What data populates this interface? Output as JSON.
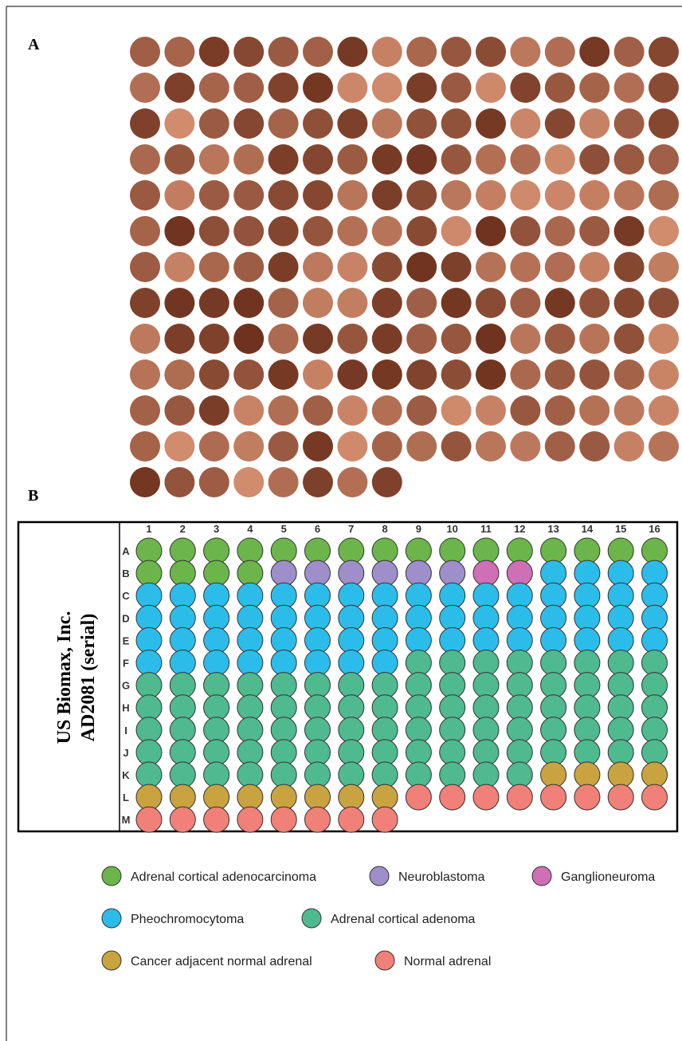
{
  "panel_a": {
    "label": "A"
  },
  "panel_b": {
    "label": "B",
    "title_lines": [
      "US Biomax, Inc.",
      "AD2081 (serial)"
    ],
    "columns": [
      "1",
      "2",
      "3",
      "4",
      "5",
      "6",
      "7",
      "8",
      "9",
      "10",
      "11",
      "12",
      "13",
      "14",
      "15",
      "16"
    ],
    "rows": [
      {
        "label": "A",
        "cells": [
          0,
          0,
          0,
          0,
          0,
          0,
          0,
          0,
          0,
          0,
          0,
          0,
          0,
          0,
          0,
          0
        ]
      },
      {
        "label": "B",
        "cells": [
          0,
          0,
          0,
          0,
          1,
          1,
          1,
          1,
          1,
          1,
          2,
          2,
          3,
          3,
          3,
          3
        ]
      },
      {
        "label": "C",
        "cells": [
          3,
          3,
          3,
          3,
          3,
          3,
          3,
          3,
          3,
          3,
          3,
          3,
          3,
          3,
          3,
          3
        ]
      },
      {
        "label": "D",
        "cells": [
          3,
          3,
          3,
          3,
          3,
          3,
          3,
          3,
          3,
          3,
          3,
          3,
          3,
          3,
          3,
          3
        ]
      },
      {
        "label": "E",
        "cells": [
          3,
          3,
          3,
          3,
          3,
          3,
          3,
          3,
          3,
          3,
          3,
          3,
          3,
          3,
          3,
          3
        ]
      },
      {
        "label": "F",
        "cells": [
          3,
          3,
          3,
          3,
          3,
          3,
          3,
          3,
          4,
          4,
          4,
          4,
          4,
          4,
          4,
          4
        ]
      },
      {
        "label": "G",
        "cells": [
          4,
          4,
          4,
          4,
          4,
          4,
          4,
          4,
          4,
          4,
          4,
          4,
          4,
          4,
          4,
          4
        ]
      },
      {
        "label": "H",
        "cells": [
          4,
          4,
          4,
          4,
          4,
          4,
          4,
          4,
          4,
          4,
          4,
          4,
          4,
          4,
          4,
          4
        ]
      },
      {
        "label": "I",
        "cells": [
          4,
          4,
          4,
          4,
          4,
          4,
          4,
          4,
          4,
          4,
          4,
          4,
          4,
          4,
          4,
          4
        ]
      },
      {
        "label": "J",
        "cells": [
          4,
          4,
          4,
          4,
          4,
          4,
          4,
          4,
          4,
          4,
          4,
          4,
          4,
          4,
          4,
          4
        ]
      },
      {
        "label": "K",
        "cells": [
          4,
          4,
          4,
          4,
          4,
          4,
          4,
          4,
          4,
          4,
          4,
          4,
          5,
          5,
          5,
          5
        ]
      },
      {
        "label": "L",
        "cells": [
          5,
          5,
          5,
          5,
          5,
          5,
          5,
          5,
          6,
          6,
          6,
          6,
          6,
          6,
          6,
          6
        ]
      },
      {
        "label": "M",
        "cells": [
          6,
          6,
          6,
          6,
          6,
          6,
          6,
          6
        ]
      }
    ],
    "legend": [
      {
        "name": "Adrenal cortical adenocarcinoma",
        "color": "#6cb54a"
      },
      {
        "name": "Neuroblastoma",
        "color": "#9e8fca"
      },
      {
        "name": "Ganglioneuroma",
        "color": "#cf6fb6"
      },
      {
        "name": "Pheochromocytoma",
        "color": "#2cbce9"
      },
      {
        "name": "Adrenal cortical adenoma",
        "color": "#4fb98f"
      },
      {
        "name": "Cancer adjacent normal adrenal",
        "color": "#c9a33f"
      },
      {
        "name": "Normal adrenal",
        "color": "#f08078"
      }
    ]
  }
}
